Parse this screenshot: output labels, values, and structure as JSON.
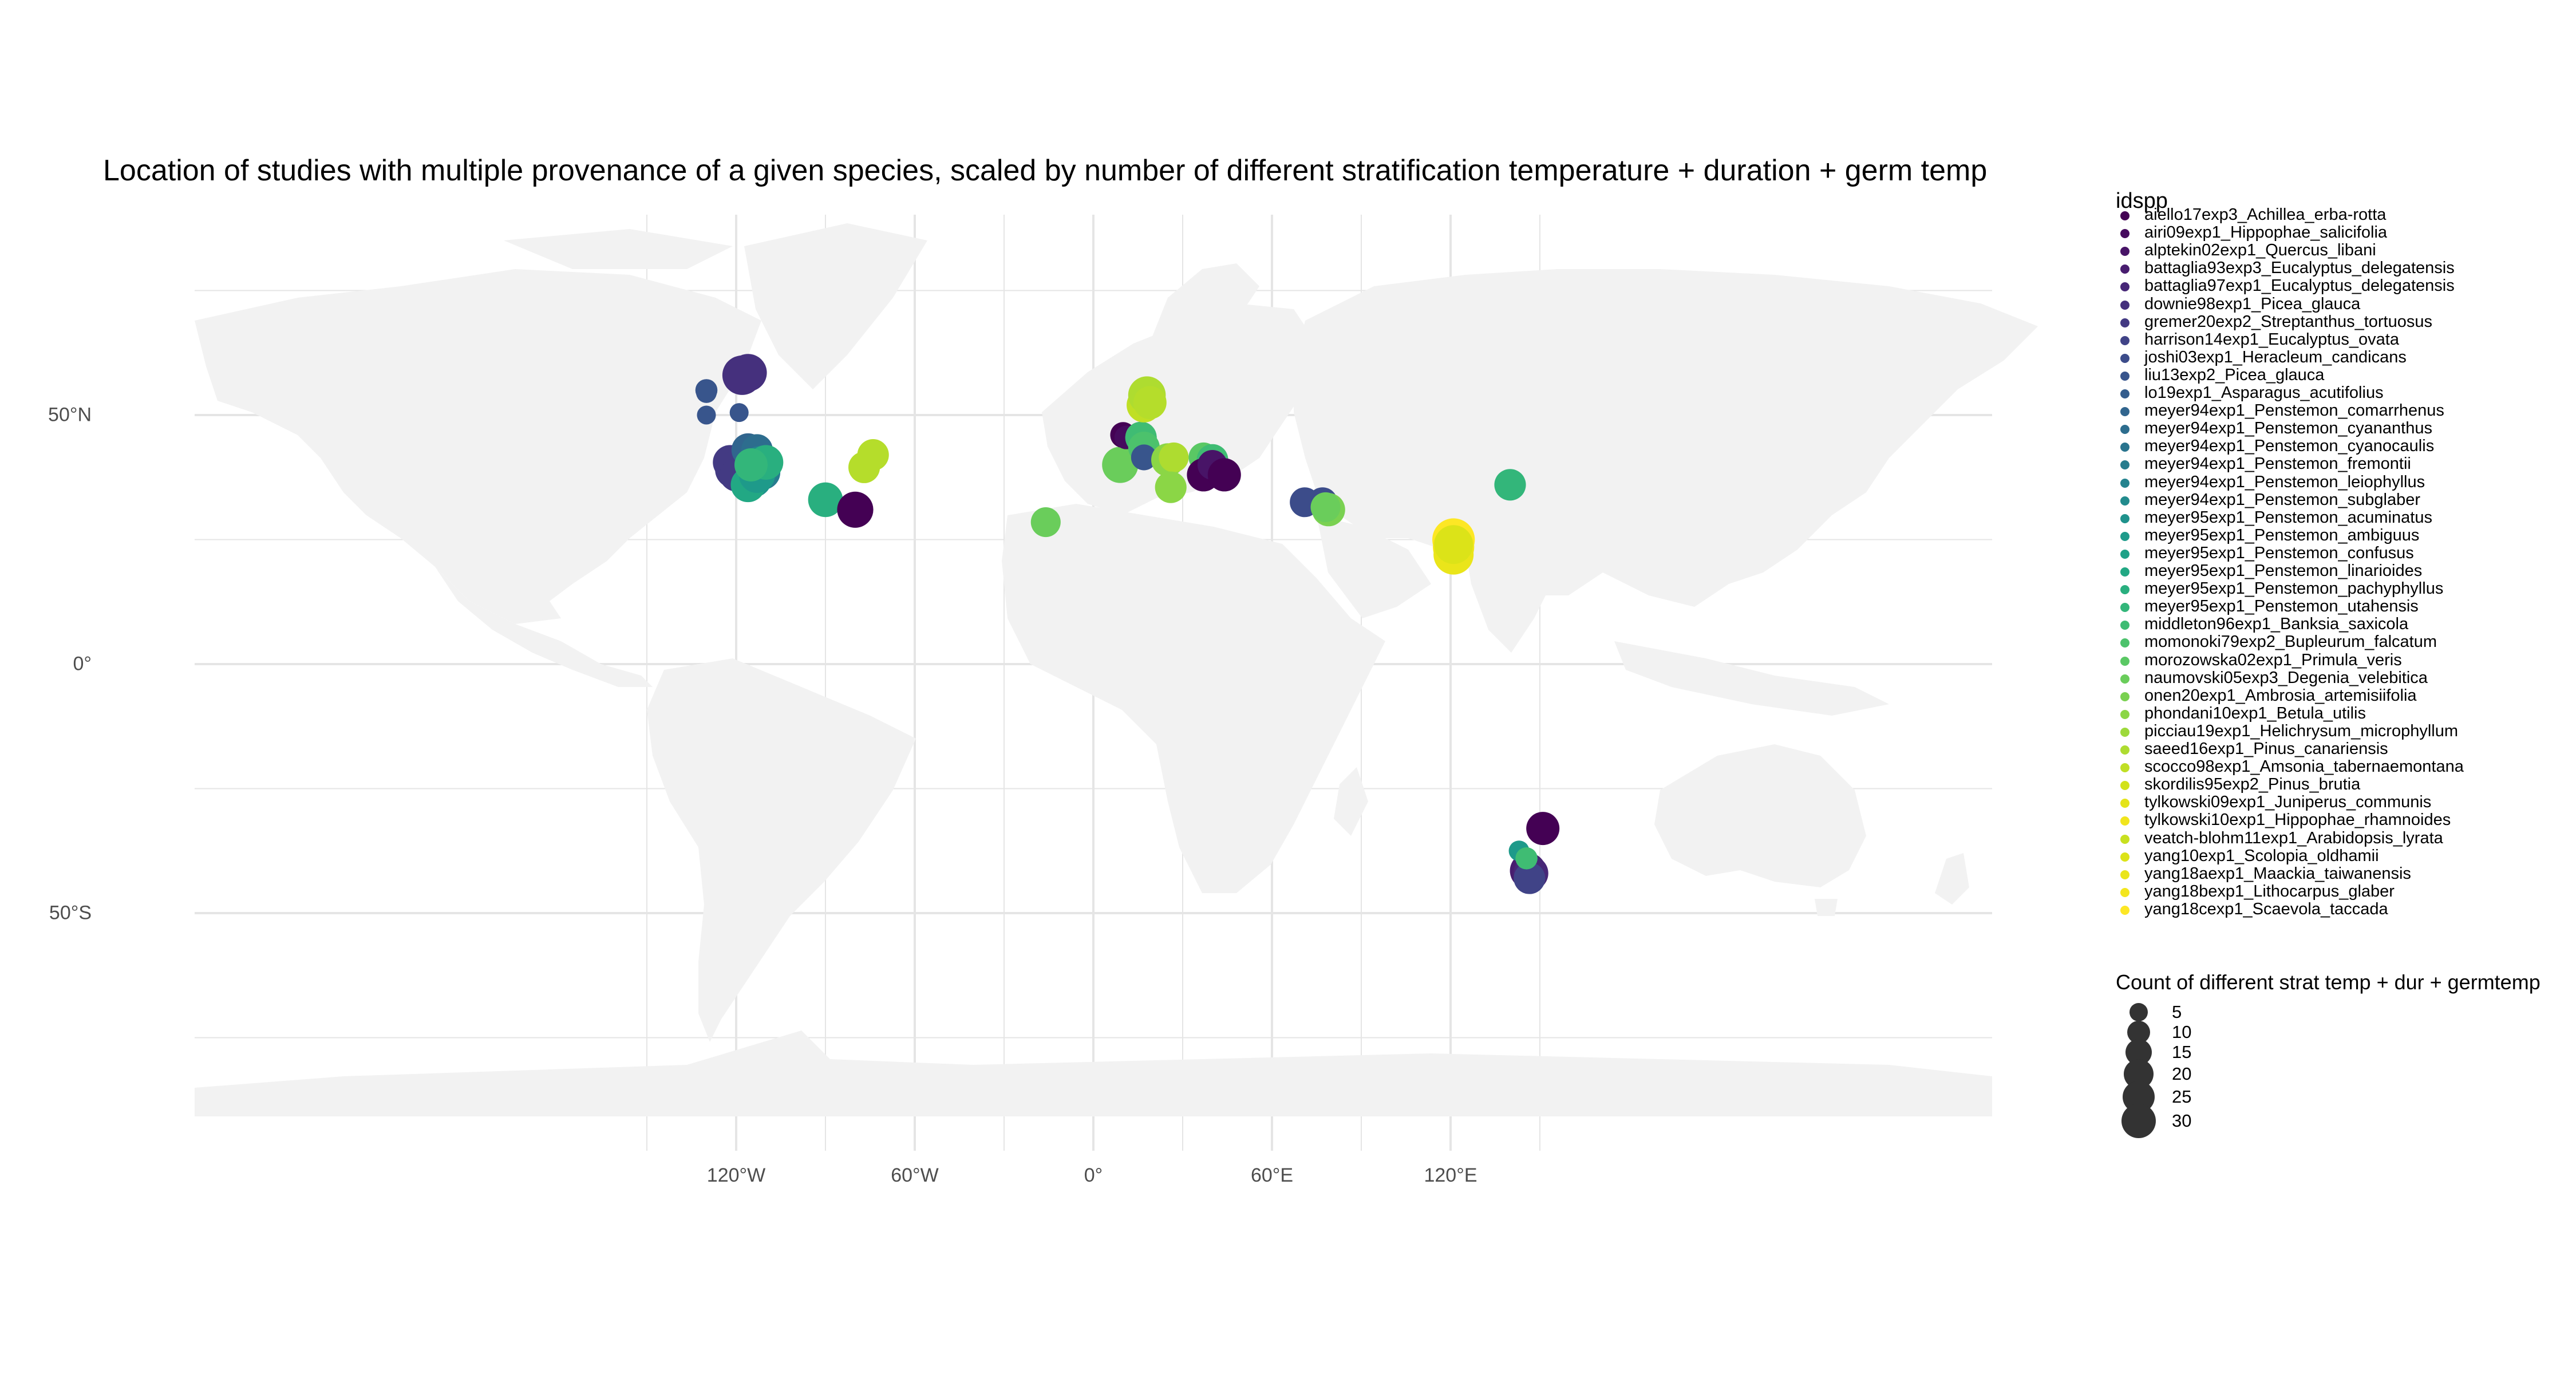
{
  "title": "Location of studies with multiple provenance of a given species, scaled by number of different stratification temperature + duration + germ temp",
  "map": {
    "land_color": "#f2f2f2",
    "grid_color": "#e5e5e5",
    "x_ticks": [
      {
        "lon": -120,
        "label": "120°W"
      },
      {
        "lon": -60,
        "label": "60°W"
      },
      {
        "lon": 0,
        "label": "0°"
      },
      {
        "lon": 60,
        "label": "60°E"
      },
      {
        "lon": 120,
        "label": "120°E"
      }
    ],
    "y_ticks": [
      {
        "lat": 50,
        "label": "50°N"
      },
      {
        "lat": 0,
        "label": "0°"
      },
      {
        "lat": -50,
        "label": "50°S"
      }
    ]
  },
  "legend_species": {
    "title": "idspp",
    "items": [
      {
        "label": "aiello17exp3_Achillea_erba-rotta",
        "color": "#440154"
      },
      {
        "label": "airi09exp1_Hippophae_salicifolia",
        "color": "#460B5E"
      },
      {
        "label": "alptekin02exp1_Quercus_libani",
        "color": "#481467"
      },
      {
        "label": "battaglia93exp3_Eucalyptus_delegatensis",
        "color": "#481D6F"
      },
      {
        "label": "battaglia97exp1_Eucalyptus_delegatensis",
        "color": "#472777"
      },
      {
        "label": "downie98exp1_Picea_glauca",
        "color": "#45307D"
      },
      {
        "label": "gremer20exp2_Streptanthus_tortuosus",
        "color": "#433A83"
      },
      {
        "label": "harrison14exp1_Eucalyptus_ovata",
        "color": "#404387"
      },
      {
        "label": "joshi03exp1_Heracleum_candicans",
        "color": "#3C4C8A"
      },
      {
        "label": "liu13exp2_Picea_glauca",
        "color": "#38558C"
      },
      {
        "label": "lo19exp1_Asparagus_acutifolius",
        "color": "#345D8D"
      },
      {
        "label": "meyer94exp1_Penstemon_comarrhenus",
        "color": "#31658E"
      },
      {
        "label": "meyer94exp1_Penstemon_cyananthus",
        "color": "#2D6D8E"
      },
      {
        "label": "meyer94exp1_Penstemon_cyanocaulis",
        "color": "#2A748E"
      },
      {
        "label": "meyer94exp1_Penstemon_fremontii",
        "color": "#277C8E"
      },
      {
        "label": "meyer94exp1_Penstemon_leiophyllus",
        "color": "#24838E"
      },
      {
        "label": "meyer94exp1_Penstemon_subglaber",
        "color": "#228B8D"
      },
      {
        "label": "meyer95exp1_Penstemon_acuminatus",
        "color": "#1F928C"
      },
      {
        "label": "meyer95exp1_Penstemon_ambiguus",
        "color": "#1E9A8A"
      },
      {
        "label": "meyer95exp1_Penstemon_confusus",
        "color": "#1FA188"
      },
      {
        "label": "meyer95exp1_Penstemon_linarioides",
        "color": "#22A884"
      },
      {
        "label": "meyer95exp1_Penstemon_pachyphyllus",
        "color": "#29AF7F"
      },
      {
        "label": "meyer95exp1_Penstemon_utahensis",
        "color": "#33B67A"
      },
      {
        "label": "middleton96exp1_Banksia_saxicola",
        "color": "#3FBC73"
      },
      {
        "label": "momonoki79exp2_Bupleurum_falcatum",
        "color": "#4CC26C"
      },
      {
        "label": "morozowska02exp1_Primula_veris",
        "color": "#5AC864"
      },
      {
        "label": "naumovski05exp3_Degenia_velebitica",
        "color": "#6ACD5B"
      },
      {
        "label": "onen20exp1_Ambrosia_artemisiifolia",
        "color": "#7AD151"
      },
      {
        "label": "phondani10exp1_Betula_utilis",
        "color": "#8BD646"
      },
      {
        "label": "picciau19exp1_Helichrysum_microphyllum",
        "color": "#9DD93B"
      },
      {
        "label": "saeed16exp1_Pinus_canariensis",
        "color": "#AEDC30"
      },
      {
        "label": "scocco98exp1_Amsonia_tabernaemontana",
        "color": "#C0DF25"
      },
      {
        "label": "skordilis95exp2_Pinus_brutia",
        "color": "#D2E21B"
      },
      {
        "label": "tylkowski09exp1_Juniperus_communis",
        "color": "#E4E419"
      },
      {
        "label": "tylkowski10exp1_Hippophae_rhamnoides",
        "color": "#F1E51D"
      },
      {
        "label": "veatch-blohm11exp1_Arabidopsis_lyrata",
        "color": "#C8E020"
      },
      {
        "label": "yang10exp1_Scolopia_oldhamii",
        "color": "#DCE318"
      },
      {
        "label": "yang18aexp1_Maackia_taiwanensis",
        "color": "#EAE51A"
      },
      {
        "label": "yang18bexp1_Lithocarpus_glaber",
        "color": "#F3E61E"
      },
      {
        "label": "yang18cexp1_Scaevola_taccada",
        "color": "#FDE725"
      }
    ]
  },
  "legend_size": {
    "title": "Count of different strat temp + dur + germtemp",
    "items": [
      {
        "value": 5,
        "label": "5"
      },
      {
        "value": 10,
        "label": "10"
      },
      {
        "value": 15,
        "label": "15"
      },
      {
        "value": 20,
        "label": "20"
      },
      {
        "value": 25,
        "label": "25"
      },
      {
        "value": 30,
        "label": "30"
      }
    ]
  },
  "points": [
    {
      "lon": -130,
      "lat": 55,
      "count": 5,
      "color": "#38558C"
    },
    {
      "lon": -130,
      "lat": 54.5,
      "count": 4,
      "color": "#38558C"
    },
    {
      "lon": -130,
      "lat": 50,
      "count": 3,
      "color": "#38558C"
    },
    {
      "lon": -119,
      "lat": 50.5,
      "count": 3,
      "color": "#38558C"
    },
    {
      "lon": -118,
      "lat": 58,
      "count": 25,
      "color": "#45307D"
    },
    {
      "lon": -116,
      "lat": 58.5,
      "count": 22,
      "color": "#45307D"
    },
    {
      "lon": -122,
      "lat": 40.5,
      "count": 18,
      "color": "#433A83"
    },
    {
      "lon": -121,
      "lat": 39,
      "count": 20,
      "color": "#433A83"
    },
    {
      "lon": -120,
      "lat": 38,
      "count": 16,
      "color": "#433A83"
    },
    {
      "lon": -116,
      "lat": 43,
      "count": 16,
      "color": "#31658E"
    },
    {
      "lon": -113,
      "lat": 43,
      "count": 14,
      "color": "#2D6D8E"
    },
    {
      "lon": -112,
      "lat": 40,
      "count": 22,
      "color": "#24838E"
    },
    {
      "lon": -111,
      "lat": 38.5,
      "count": 18,
      "color": "#277C8E"
    },
    {
      "lon": -114,
      "lat": 37,
      "count": 18,
      "color": "#1F928C"
    },
    {
      "lon": -116,
      "lat": 36,
      "count": 18,
      "color": "#22A884"
    },
    {
      "lon": -113,
      "lat": 38,
      "count": 20,
      "color": "#1E9A8A"
    },
    {
      "lon": -110,
      "lat": 40.5,
      "count": 18,
      "color": "#29AF7F"
    },
    {
      "lon": -115,
      "lat": 40,
      "count": 16,
      "color": "#33B67A"
    },
    {
      "lon": -90,
      "lat": 33,
      "count": 18,
      "color": "#29AF7F"
    },
    {
      "lon": -80,
      "lat": 31,
      "count": 20,
      "color": "#440154"
    },
    {
      "lon": -77,
      "lat": 39.5,
      "count": 14,
      "color": "#B5DD2B"
    },
    {
      "lon": -74,
      "lat": 42,
      "count": 14,
      "color": "#B5DD2B"
    },
    {
      "lon": -16,
      "lat": 28.5,
      "count": 12,
      "color": "#6ACD5B"
    },
    {
      "lon": 9,
      "lat": 40,
      "count": 20,
      "color": "#6ACD5B"
    },
    {
      "lon": 10,
      "lat": 46,
      "count": 8,
      "color": "#440154"
    },
    {
      "lon": 11,
      "lat": 45.5,
      "count": 6,
      "color": "#460B5E"
    },
    {
      "lon": 16,
      "lat": 45.5,
      "count": 14,
      "color": "#3FBC73"
    },
    {
      "lon": 17,
      "lat": 43.5,
      "count": 14,
      "color": "#4CC26C"
    },
    {
      "lon": 17,
      "lat": 41.5,
      "count": 8,
      "color": "#38558C"
    },
    {
      "lon": 17,
      "lat": 52,
      "count": 18,
      "color": "#C0DF25"
    },
    {
      "lon": 18,
      "lat": 54,
      "count": 22,
      "color": "#AEDC30"
    },
    {
      "lon": 19,
      "lat": 52.5,
      "count": 16,
      "color": "#B5DD2B"
    },
    {
      "lon": 25,
      "lat": 41,
      "count": 16,
      "color": "#8BD646"
    },
    {
      "lon": 27,
      "lat": 41.5,
      "count": 12,
      "color": "#AEDC30"
    },
    {
      "lon": 26,
      "lat": 35.5,
      "count": 14,
      "color": "#8BD646"
    },
    {
      "lon": 37,
      "lat": 41.5,
      "count": 12,
      "color": "#5AC864"
    },
    {
      "lon": 40,
      "lat": 41,
      "count": 14,
      "color": "#3FBC73"
    },
    {
      "lon": 37,
      "lat": 38,
      "count": 16,
      "color": "#440154"
    },
    {
      "lon": 40,
      "lat": 40,
      "count": 12,
      "color": "#481467"
    },
    {
      "lon": 44,
      "lat": 38,
      "count": 16,
      "color": "#440154"
    },
    {
      "lon": 71,
      "lat": 32.5,
      "count": 12,
      "color": "#3C4C8A"
    },
    {
      "lon": 77,
      "lat": 32.5,
      "count": 12,
      "color": "#3C4C8A"
    },
    {
      "lon": 79,
      "lat": 31,
      "count": 16,
      "color": "#7AD151"
    },
    {
      "lon": 78,
      "lat": 31.5,
      "count": 12,
      "color": "#6ACD5B"
    },
    {
      "lon": 140,
      "lat": 36,
      "count": 14,
      "color": "#33B67A"
    },
    {
      "lon": 121,
      "lat": 25,
      "count": 30,
      "color": "#FDE725"
    },
    {
      "lon": 121,
      "lat": 23.5,
      "count": 28,
      "color": "#F3E61E"
    },
    {
      "lon": 121,
      "lat": 22,
      "count": 26,
      "color": "#EAE51A"
    },
    {
      "lon": 121,
      "lat": 24,
      "count": 24,
      "color": "#DCE318"
    },
    {
      "lon": 151,
      "lat": -33,
      "count": 16,
      "color": "#440154"
    },
    {
      "lon": 146,
      "lat": -41.5,
      "count": 20,
      "color": "#481D6F"
    },
    {
      "lon": 147,
      "lat": -42,
      "count": 18,
      "color": "#472777"
    },
    {
      "lon": 146.5,
      "lat": -43,
      "count": 14,
      "color": "#404387"
    },
    {
      "lon": 143,
      "lat": -37.5,
      "count": 4,
      "color": "#1E9A8A"
    },
    {
      "lon": 145.5,
      "lat": -39,
      "count": 5,
      "color": "#3FBC73"
    }
  ]
}
